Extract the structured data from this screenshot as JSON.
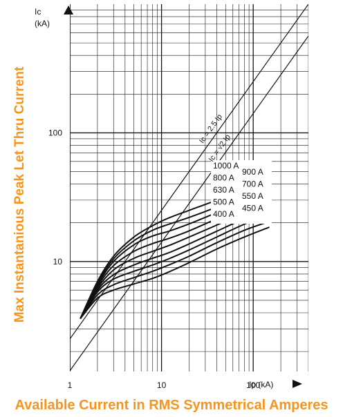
{
  "chart_data": {
    "type": "line",
    "title": "",
    "xlabel": "Available Current in RMS Symmetrical Amperes",
    "ylabel": "Max Instantanious Peak Let Thru Current",
    "x_axis_tag": "Ip (kA)",
    "y_axis_tag_line1": "Ic",
    "y_axis_tag_line2": "(kA)",
    "x_scale": "log",
    "y_scale": "log",
    "xlim": [
      1,
      400
    ],
    "ylim": [
      1.4,
      1000
    ],
    "x_ticks": [
      "1",
      "10",
      "100"
    ],
    "y_ticks": [
      "10",
      "100"
    ],
    "grid": true,
    "reference_lines": [
      {
        "name": "Ic = 2.5 Ip",
        "x": [
          1,
          400
        ],
        "y": [
          2.5,
          1000
        ]
      },
      {
        "name": "Ic = √2 Ip",
        "x": [
          1,
          400
        ],
        "y": [
          1.414,
          565.7
        ]
      }
    ],
    "series": [
      {
        "name": "1000 A",
        "x": [
          1.3,
          2,
          3,
          5,
          8,
          12,
          20,
          40,
          80,
          150
        ],
        "y": [
          3.6,
          7,
          11,
          15.5,
          19,
          21.8,
          25,
          30,
          36.5,
          44
        ]
      },
      {
        "name": "900 A",
        "x": [
          1.3,
          2,
          3,
          5,
          8,
          12,
          20,
          40,
          80,
          150
        ],
        "y": [
          3.6,
          6.8,
          10.5,
          14.5,
          17.5,
          19.5,
          22,
          26.5,
          32.5,
          39
        ]
      },
      {
        "name": "800 A",
        "x": [
          1.3,
          2,
          3,
          5,
          8,
          12,
          20,
          40,
          80,
          150
        ],
        "y": [
          3.6,
          6.6,
          10,
          13.5,
          15.8,
          17.2,
          19.6,
          24,
          29.5,
          35.5
        ]
      },
      {
        "name": "700 A",
        "x": [
          1.3,
          2,
          3,
          5,
          8,
          12,
          20,
          40,
          80,
          150
        ],
        "y": [
          3.6,
          6.4,
          9.3,
          12,
          13.8,
          15.1,
          17.3,
          21.5,
          26.5,
          32
        ]
      },
      {
        "name": "630 A",
        "x": [
          1.3,
          2,
          3,
          5,
          8,
          12,
          20,
          40,
          80,
          150
        ],
        "y": [
          3.6,
          6.2,
          8.6,
          10.6,
          12,
          13.3,
          15.5,
          19.2,
          24,
          28.5
        ]
      },
      {
        "name": "550 A",
        "x": [
          1.3,
          2,
          3,
          5,
          8,
          12,
          20,
          40,
          80,
          150
        ],
        "y": [
          3.6,
          6,
          7.9,
          9.4,
          10.6,
          11.7,
          13.7,
          17.2,
          21.5,
          25.5
        ]
      },
      {
        "name": "500 A",
        "x": [
          1.3,
          2,
          3,
          5,
          8,
          12,
          20,
          40,
          80,
          150
        ],
        "y": [
          3.6,
          5.8,
          7.3,
          8.4,
          9.4,
          10.5,
          12.3,
          15.5,
          19.5,
          23
        ]
      },
      {
        "name": "450 A",
        "x": [
          1.3,
          2,
          3,
          5,
          8,
          12,
          20,
          40,
          80,
          150
        ],
        "y": [
          3.6,
          5.5,
          6.6,
          7.5,
          8.4,
          9.4,
          11,
          14,
          17.5,
          20.5
        ]
      },
      {
        "name": "400 A",
        "x": [
          1.3,
          2,
          3,
          5,
          8,
          12,
          20,
          40,
          80,
          150
        ],
        "y": [
          3.6,
          5.2,
          6,
          6.7,
          7.4,
          8.3,
          9.8,
          12.5,
          15.5,
          18.5
        ]
      }
    ],
    "colors": {
      "axis_title": "#f7941d",
      "ink": "#111111",
      "background": "#ffffff"
    }
  }
}
